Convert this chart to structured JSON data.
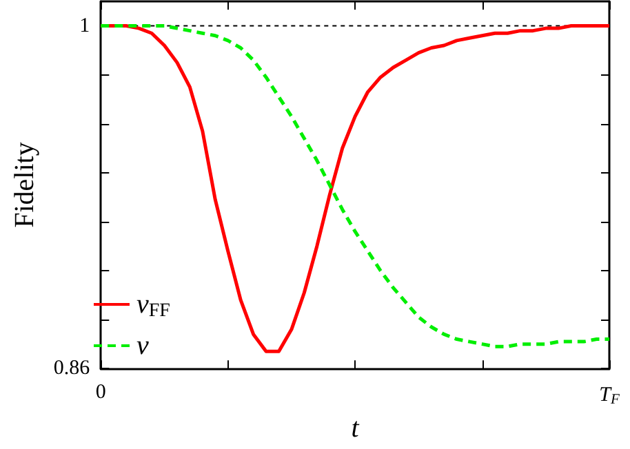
{
  "chart_data": {
    "type": "line",
    "xlabel": "t",
    "ylabel": "Fidelity",
    "categories": [
      "0",
      null,
      null,
      null,
      null,
      null,
      null,
      null,
      null,
      null,
      null,
      null,
      null,
      null,
      null,
      null,
      null,
      null,
      null,
      null,
      null,
      null,
      null,
      null,
      null,
      null,
      null,
      null,
      null,
      null,
      null,
      null,
      null,
      null,
      null,
      null,
      null,
      null,
      null,
      null,
      "T$_{F}$"
    ],
    "ylim": [
      0.86,
      1.01
    ],
    "yticks": [
      0.86,
      {
        "value": 0.88,
        "label": null
      },
      {
        "value": 0.9,
        "label": null
      },
      {
        "value": 0.92,
        "label": null
      },
      {
        "value": 0.94,
        "label": null
      },
      {
        "value": 0.96,
        "label": null
      },
      {
        "value": 0.98,
        "label": null
      },
      1
    ],
    "grid": false,
    "legend": "bottom left",
    "marker": "none",
    "ref_lines": [
      {
        "axis": "y",
        "value": 1,
        "color": "#000000",
        "line_style": "dashed"
      }
    ],
    "series": [
      {
        "name": "ν$_{FF}$",
        "color": "#ff0000",
        "line_style": "solid",
        "values": [
          1,
          1,
          1,
          0.999,
          0.997,
          0.992,
          0.985,
          0.975,
          0.957,
          0.929,
          0.908,
          0.888,
          0.874,
          0.867,
          0.867,
          0.876,
          0.891,
          0.91,
          0.931,
          0.95,
          0.963,
          0.973,
          0.979,
          0.983,
          0.986,
          0.989,
          0.991,
          0.992,
          0.994,
          0.995,
          0.996,
          0.997,
          0.997,
          0.998,
          0.998,
          0.999,
          0.999,
          1,
          1,
          1,
          1
        ]
      },
      {
        "name": "ν",
        "color": "#00ee00",
        "line_style": "dashed",
        "values": [
          1,
          1,
          1,
          1,
          1,
          1,
          0.999,
          0.998,
          0.997,
          0.996,
          0.994,
          0.991,
          0.986,
          0.979,
          0.971,
          0.963,
          0.954,
          0.945,
          0.935,
          0.925,
          0.916,
          0.908,
          0.9,
          0.893,
          0.887,
          0.881,
          0.877,
          0.874,
          0.872,
          0.871,
          0.87,
          0.869,
          0.869,
          0.87,
          0.87,
          0.87,
          0.871,
          0.871,
          0.871,
          0.872,
          0.872
        ]
      }
    ]
  }
}
